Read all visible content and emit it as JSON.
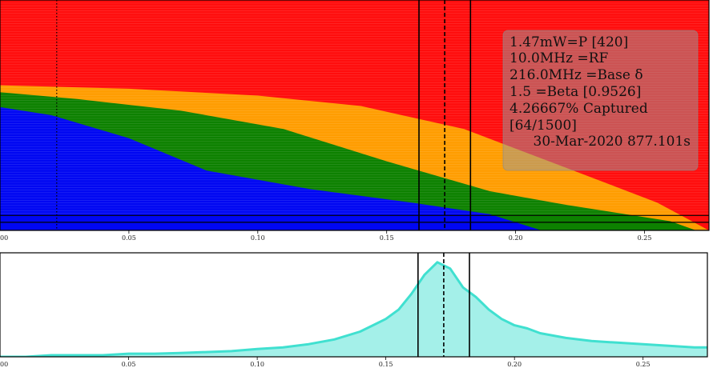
{
  "chart_data": [
    {
      "type": "area",
      "panel": "top",
      "xlim": [
        0.0,
        0.275
      ],
      "ylim": [
        0,
        1
      ],
      "x_ticks": [
        0.05,
        0.1,
        0.15,
        0.2,
        0.25
      ],
      "x_tick_labels": [
        "0.05",
        "0.10",
        "0.15",
        "0.20",
        "0.25"
      ],
      "edge_tick_label": "00",
      "series": [
        {
          "color": "#ff0000",
          "x": [
            0.0,
            0.275
          ],
          "y": [
            1.0,
            1.0
          ]
        },
        {
          "color": "#ffa500",
          "x": [
            0.0,
            0.05,
            0.1,
            0.14,
            0.18,
            0.22,
            0.255,
            0.275
          ],
          "y": [
            0.63,
            0.615,
            0.585,
            0.54,
            0.44,
            0.27,
            0.12,
            0.0
          ]
        },
        {
          "color": "#008000",
          "x": [
            0.0,
            0.03,
            0.07,
            0.11,
            0.15,
            0.19,
            0.22,
            0.26,
            0.27
          ],
          "y": [
            0.6,
            0.57,
            0.52,
            0.44,
            0.3,
            0.17,
            0.11,
            0.04,
            0.0
          ]
        },
        {
          "color": "#0000ff",
          "x": [
            0.0,
            0.02,
            0.05,
            0.08,
            0.12,
            0.16,
            0.19,
            0.21
          ],
          "y": [
            0.535,
            0.5,
            0.4,
            0.26,
            0.18,
            0.12,
            0.07,
            0.0
          ]
        }
      ],
      "vlines": [
        {
          "x": 0.022,
          "style": "dotted"
        },
        {
          "x": 0.1625,
          "style": "solid"
        },
        {
          "x": 0.1725,
          "style": "dashed"
        },
        {
          "x": 0.1825,
          "style": "solid"
        }
      ],
      "hlines": [
        0.065,
        0.035,
        0.0
      ],
      "legend_position": "top-right",
      "annotation_lines": [
        "1.47mW=P [420]",
        "10.0MHz =RF",
        "216.0MHz =Base δ",
        "1.5 =Beta [0.9526]",
        "4.26667% Captured",
        "[64/1500]",
        "30-Mar-2020 877.101s"
      ]
    },
    {
      "type": "area",
      "panel": "bottom",
      "color": "#40e0d0",
      "xlim": [
        0.0,
        0.275
      ],
      "ylim": [
        0,
        0.33
      ],
      "x_ticks": [
        0.05,
        0.1,
        0.15,
        0.2,
        0.25
      ],
      "x_tick_labels": [
        "0.05",
        "0.10",
        "0.15",
        "0.20",
        "0.25"
      ],
      "edge_tick_label": "00",
      "x": [
        0.0,
        0.01,
        0.02,
        0.03,
        0.04,
        0.05,
        0.06,
        0.07,
        0.08,
        0.09,
        0.1,
        0.11,
        0.12,
        0.13,
        0.14,
        0.145,
        0.15,
        0.155,
        0.16,
        0.165,
        0.17,
        0.175,
        0.18,
        0.185,
        0.19,
        0.195,
        0.2,
        0.205,
        0.21,
        0.22,
        0.23,
        0.24,
        0.25,
        0.26,
        0.27,
        0.275
      ],
      "y": [
        0.0,
        0.0,
        0.005,
        0.005,
        0.005,
        0.01,
        0.01,
        0.012,
        0.015,
        0.018,
        0.025,
        0.03,
        0.04,
        0.055,
        0.08,
        0.1,
        0.12,
        0.15,
        0.2,
        0.26,
        0.3,
        0.28,
        0.22,
        0.19,
        0.15,
        0.12,
        0.1,
        0.09,
        0.075,
        0.06,
        0.05,
        0.045,
        0.04,
        0.035,
        0.03,
        0.03
      ],
      "vlines": [
        {
          "x": 0.1625,
          "style": "solid"
        },
        {
          "x": 0.1725,
          "style": "dashed"
        },
        {
          "x": 0.1825,
          "style": "solid"
        }
      ]
    }
  ]
}
